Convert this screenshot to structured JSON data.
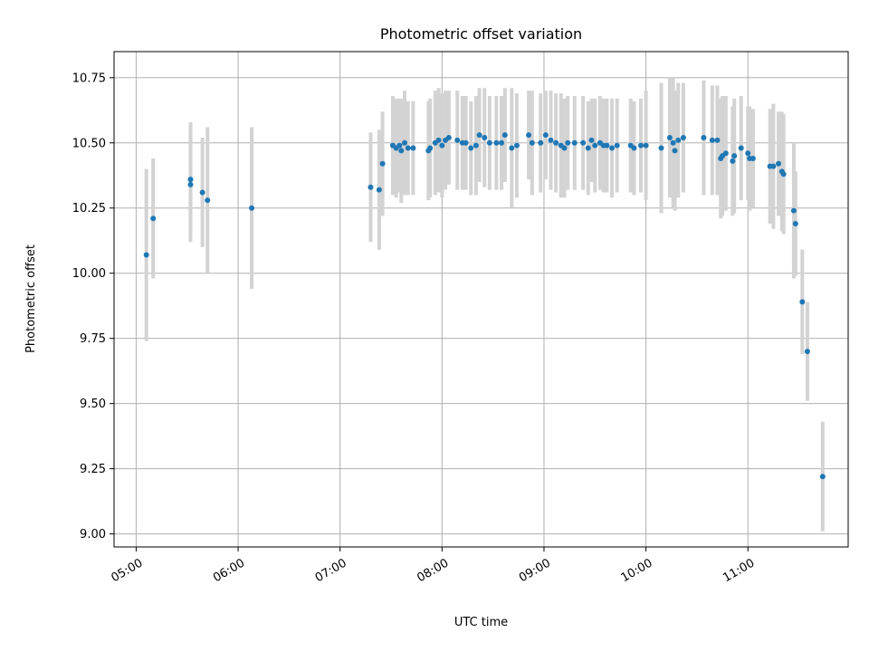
{
  "chart_data": {
    "type": "scatter",
    "title": "Photometric offset variation",
    "xlabel": "UTC time",
    "ylabel": "Photometric offset",
    "x_axis_kind": "time",
    "x_range": [
      "04:47",
      "11:59"
    ],
    "ylim": [
      8.95,
      10.85
    ],
    "grid": true,
    "x_ticks": [
      "05:00",
      "06:00",
      "07:00",
      "08:00",
      "09:00",
      "10:00",
      "11:00"
    ],
    "y_ticks": [
      9.0,
      9.25,
      9.5,
      9.75,
      10.0,
      10.25,
      10.5,
      10.75
    ],
    "y_tick_labels": [
      "9.00",
      "9.25",
      "9.50",
      "9.75",
      "10.00",
      "10.25",
      "10.50",
      "10.75"
    ],
    "colors": {
      "points": "#1f77b4",
      "errorbars": "#d3d3d3",
      "grid": "#b0b0b0"
    },
    "series": [
      {
        "x": [
          "05:06",
          "05:10",
          "05:32",
          "05:32",
          "05:39",
          "05:42",
          "06:08",
          "07:18",
          "07:23",
          "07:25",
          "07:31",
          "07:33",
          "07:35",
          "07:36",
          "07:38",
          "07:40",
          "07:43",
          "07:52",
          "07:53",
          "07:56",
          "07:58",
          "08:00",
          "08:02",
          "08:04",
          "08:09",
          "08:12",
          "08:14",
          "08:17",
          "08:20",
          "08:22",
          "08:25",
          "08:28",
          "08:32",
          "08:35",
          "08:37",
          "08:41",
          "08:44",
          "08:51",
          "08:53",
          "08:58",
          "09:01",
          "09:04",
          "09:07",
          "09:10",
          "09:12",
          "09:14",
          "09:18",
          "09:23",
          "09:26",
          "09:28",
          "09:30",
          "09:33",
          "09:35",
          "09:37",
          "09:40",
          "09:43",
          "09:51",
          "09:53",
          "09:57",
          "10:00",
          "10:09",
          "10:14",
          "10:16",
          "10:17",
          "10:19",
          "10:22",
          "10:34",
          "10:39",
          "10:42",
          "10:44",
          "10:45",
          "10:47",
          "10:51",
          "10:52",
          "10:56",
          "11:00",
          "11:01",
          "11:03",
          "11:13",
          "11:15",
          "11:18",
          "11:20",
          "11:21",
          "11:27",
          "11:28",
          "11:32",
          "11:35",
          "11:44"
        ],
        "y": [
          10.07,
          10.21,
          10.36,
          10.34,
          10.31,
          10.28,
          10.25,
          10.33,
          10.32,
          10.42,
          10.49,
          10.48,
          10.49,
          10.47,
          10.5,
          10.48,
          10.48,
          10.47,
          10.48,
          10.5,
          10.51,
          10.49,
          10.51,
          10.52,
          10.51,
          10.5,
          10.5,
          10.48,
          10.49,
          10.53,
          10.52,
          10.5,
          10.5,
          10.5,
          10.53,
          10.48,
          10.49,
          10.53,
          10.5,
          10.5,
          10.53,
          10.51,
          10.5,
          10.49,
          10.48,
          10.5,
          10.5,
          10.5,
          10.48,
          10.51,
          10.49,
          10.5,
          10.49,
          10.49,
          10.48,
          10.49,
          10.49,
          10.48,
          10.49,
          10.49,
          10.48,
          10.52,
          10.5,
          10.47,
          10.51,
          10.52,
          10.52,
          10.51,
          10.51,
          10.44,
          10.45,
          10.46,
          10.43,
          10.45,
          10.48,
          10.46,
          10.44,
          10.44,
          10.41,
          10.41,
          10.42,
          10.39,
          10.38,
          10.24,
          10.19,
          9.89,
          9.7,
          9.22
        ],
        "err": [
          0.33,
          0.23,
          0.22,
          0.22,
          0.21,
          0.28,
          0.31,
          0.21,
          0.23,
          0.2,
          0.19,
          0.19,
          0.18,
          0.2,
          0.2,
          0.18,
          0.18,
          0.19,
          0.19,
          0.2,
          0.2,
          0.2,
          0.19,
          0.18,
          0.19,
          0.18,
          0.18,
          0.18,
          0.19,
          0.18,
          0.19,
          0.18,
          0.18,
          0.18,
          0.18,
          0.23,
          0.2,
          0.17,
          0.2,
          0.19,
          0.17,
          0.19,
          0.19,
          0.2,
          0.19,
          0.18,
          0.18,
          0.18,
          0.18,
          0.16,
          0.18,
          0.18,
          0.18,
          0.18,
          0.19,
          0.18,
          0.18,
          0.18,
          0.18,
          0.21,
          0.25,
          0.23,
          0.25,
          0.23,
          0.22,
          0.21,
          0.22,
          0.21,
          0.21,
          0.23,
          0.23,
          0.22,
          0.21,
          0.22,
          0.2,
          0.18,
          0.2,
          0.19,
          0.22,
          0.24,
          0.2,
          0.23,
          0.23,
          0.26,
          0.2,
          0.2,
          0.19,
          0.21
        ]
      }
    ]
  }
}
